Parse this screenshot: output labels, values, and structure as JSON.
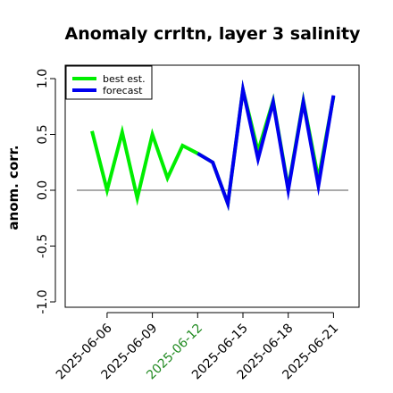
{
  "chart_data": {
    "type": "line",
    "title": "Anomaly crrltn, layer 3 salinity",
    "xlabel": "",
    "ylabel": "anom. corr.",
    "ylim": [
      -1.0,
      1.0
    ],
    "yticks": [
      "-1.0",
      "-0.5",
      "0.0",
      "0.5",
      "1.0"
    ],
    "x": [
      "2025-06-05",
      "2025-06-06",
      "2025-06-07",
      "2025-06-08",
      "2025-06-09",
      "2025-06-10",
      "2025-06-11",
      "2025-06-12",
      "2025-06-13",
      "2025-06-14",
      "2025-06-15",
      "2025-06-16",
      "2025-06-17",
      "2025-06-18",
      "2025-06-19",
      "2025-06-20",
      "2025-06-21"
    ],
    "xtick_labels": [
      {
        "label": "2025-06-06",
        "color": "#000000"
      },
      {
        "label": "2025-06-09",
        "color": "#000000"
      },
      {
        "label": "2025-06-12",
        "color": "#228B22"
      },
      {
        "label": "2025-06-15",
        "color": "#000000"
      },
      {
        "label": "2025-06-18",
        "color": "#000000"
      },
      {
        "label": "2025-06-21",
        "color": "#000000"
      }
    ],
    "reference_line": 0.0,
    "series": [
      {
        "name": "best est.",
        "color": "#00ee00",
        "x": [
          "2025-06-05",
          "2025-06-06",
          "2025-06-07",
          "2025-06-08",
          "2025-06-09",
          "2025-06-10",
          "2025-06-11",
          "2025-06-12",
          "2025-06-13",
          "2025-06-14",
          "2025-06-15",
          "2025-06-16",
          "2025-06-17",
          "2025-06-18",
          "2025-06-19",
          "2025-06-20",
          "2025-06-21"
        ],
        "values": [
          0.53,
          0.0,
          0.52,
          -0.07,
          0.5,
          0.11,
          0.4,
          0.33,
          0.25,
          -0.12,
          0.9,
          0.35,
          0.8,
          0.02,
          0.8,
          0.1,
          0.84
        ]
      },
      {
        "name": "forecast",
        "color": "#0000ee",
        "x": [
          "2025-06-12",
          "2025-06-13",
          "2025-06-14",
          "2025-06-15",
          "2025-06-16",
          "2025-06-17",
          "2025-06-18",
          "2025-06-19",
          "2025-06-20",
          "2025-06-21"
        ],
        "values": [
          0.33,
          0.25,
          -0.12,
          0.9,
          0.28,
          0.79,
          0.0,
          0.79,
          0.04,
          0.85
        ]
      }
    ],
    "legend": {
      "position": "top-left"
    },
    "grid": false
  }
}
